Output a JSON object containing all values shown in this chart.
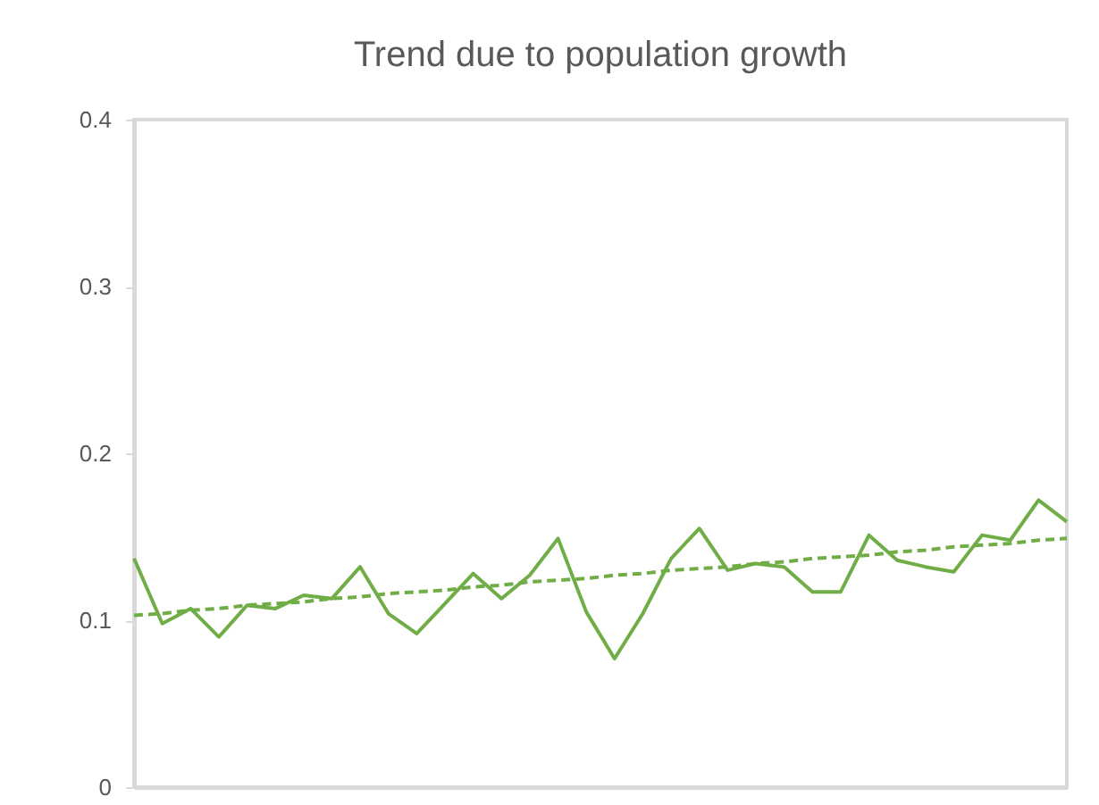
{
  "chart_data": {
    "type": "line",
    "title": "Trend due to population growth",
    "categories": [
      null,
      null,
      null,
      null,
      null,
      null,
      null,
      null,
      null,
      null,
      null,
      null,
      null,
      null,
      null,
      null,
      null,
      null,
      null,
      null,
      null,
      null,
      null,
      null,
      null,
      null,
      null,
      null,
      null,
      null,
      null,
      null,
      null,
      null
    ],
    "series": [
      {
        "color": "#70ad47",
        "line_style": "solid",
        "values": [
          0.137,
          0.098,
          0.107,
          0.09,
          0.109,
          0.107,
          0.115,
          0.113,
          0.132,
          0.104,
          0.092,
          0.11,
          0.128,
          0.113,
          0.127,
          0.149,
          0.105,
          0.077,
          0.104,
          0.137,
          0.155,
          0.13,
          0.134,
          0.132,
          0.117,
          0.117,
          0.151,
          0.136,
          0.132,
          0.129,
          0.151,
          0.148,
          0.172,
          0.159
        ]
      },
      {
        "color": "#70ad47",
        "line_style": "dashed",
        "values": [
          0.103,
          0.104,
          0.106,
          0.107,
          0.109,
          0.11,
          0.111,
          0.113,
          0.114,
          0.116,
          0.117,
          0.118,
          0.12,
          0.121,
          0.123,
          0.124,
          0.125,
          0.127,
          0.128,
          0.13,
          0.131,
          0.132,
          0.134,
          0.135,
          0.137,
          0.138,
          0.139,
          0.141,
          0.142,
          0.144,
          0.145,
          0.146,
          0.148,
          0.149
        ]
      }
    ],
    "ylim": [
      0,
      0.4
    ],
    "yticks": [
      0,
      0.1,
      0.2,
      0.3,
      0.4
    ],
    "tick_labels": "y",
    "grid": false,
    "marker": "none"
  }
}
